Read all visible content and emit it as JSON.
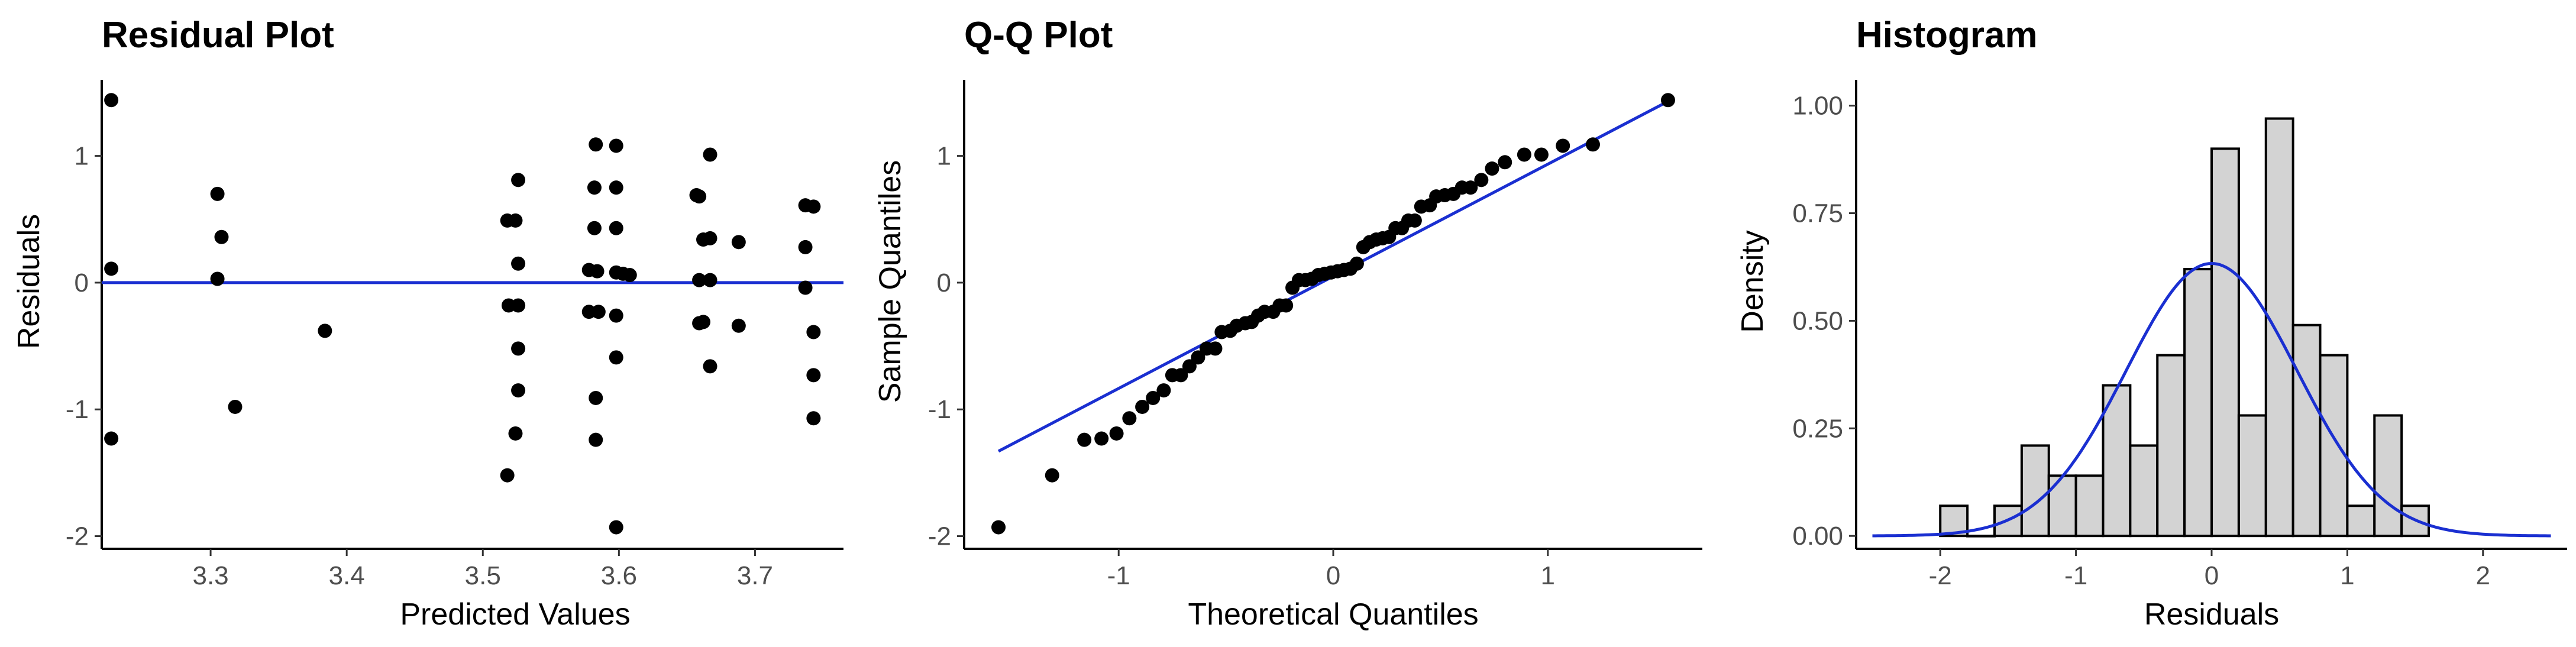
{
  "chart_data": [
    {
      "type": "scatter",
      "title": "Residual Plot",
      "xlabel": "Predicted Values",
      "ylabel": "Residuals",
      "xlim": [
        3.22,
        3.765
      ],
      "ylim": [
        -2.1,
        1.6
      ],
      "xticks": [
        3.3,
        3.4,
        3.5,
        3.6,
        3.7
      ],
      "yticks": [
        -2,
        -1,
        0,
        1
      ],
      "xtick_labels": [
        "3.3",
        "3.4",
        "3.5",
        "3.6",
        "3.7"
      ],
      "ytick_labels": [
        "-2",
        "-1",
        "0",
        "1"
      ],
      "grid": false,
      "reference_line": {
        "type": "horizontal",
        "y": 0,
        "color": "#1a2fd1"
      },
      "points_color": "#000000",
      "points": [
        [
          3.227,
          1.44
        ],
        [
          3.227,
          0.11
        ],
        [
          3.227,
          -1.23
        ],
        [
          3.305,
          0.7
        ],
        [
          3.308,
          0.36
        ],
        [
          3.305,
          0.03
        ],
        [
          3.318,
          -0.98
        ],
        [
          3.384,
          -0.38
        ],
        [
          3.518,
          0.49
        ],
        [
          3.524,
          0.49
        ],
        [
          3.526,
          0.81
        ],
        [
          3.519,
          -0.18
        ],
        [
          3.526,
          -0.18
        ],
        [
          3.526,
          0.15
        ],
        [
          3.526,
          -0.52
        ],
        [
          3.526,
          -0.85
        ],
        [
          3.524,
          -1.19
        ],
        [
          3.518,
          -1.52
        ],
        [
          3.583,
          1.09
        ],
        [
          3.582,
          0.75
        ],
        [
          3.582,
          0.43
        ],
        [
          3.578,
          0.1
        ],
        [
          3.584,
          0.09
        ],
        [
          3.578,
          -0.23
        ],
        [
          3.585,
          -0.23
        ],
        [
          3.583,
          -0.91
        ],
        [
          3.583,
          -1.24
        ],
        [
          3.598,
          1.08
        ],
        [
          3.598,
          0.75
        ],
        [
          3.598,
          0.43
        ],
        [
          3.598,
          0.08
        ],
        [
          3.603,
          0.07
        ],
        [
          3.608,
          0.06
        ],
        [
          3.598,
          -0.26
        ],
        [
          3.598,
          -0.59
        ],
        [
          3.598,
          -1.93
        ],
        [
          3.657,
          0.69
        ],
        [
          3.659,
          0.68
        ],
        [
          3.662,
          0.34
        ],
        [
          3.667,
          0.35
        ],
        [
          3.659,
          0.02
        ],
        [
          3.667,
          0.02
        ],
        [
          3.659,
          -0.32
        ],
        [
          3.662,
          -0.31
        ],
        [
          3.667,
          -0.66
        ],
        [
          3.667,
          1.01
        ],
        [
          3.688,
          0.32
        ],
        [
          3.688,
          -0.34
        ],
        [
          3.737,
          0.61
        ],
        [
          3.743,
          0.6
        ],
        [
          3.737,
          0.28
        ],
        [
          3.737,
          -0.04
        ],
        [
          3.743,
          -0.39
        ],
        [
          3.743,
          -0.73
        ],
        [
          3.743,
          -1.07
        ]
      ]
    },
    {
      "type": "scatter",
      "title": "Q-Q Plot",
      "xlabel": "Theoretical Quantiles",
      "ylabel": "Sample Quantiles",
      "xlim": [
        -1.72,
        1.72
      ],
      "ylim": [
        -2.1,
        1.6
      ],
      "xticks": [
        -1,
        0,
        1
      ],
      "yticks": [
        -2,
        -1,
        0,
        1
      ],
      "xtick_labels": [
        "-1",
        "0",
        "1"
      ],
      "ytick_labels": [
        "-2",
        "-1",
        "0",
        "1"
      ],
      "grid": false,
      "reference_line": {
        "type": "line",
        "x": [
          -1.56,
          1.56
        ],
        "y": [
          -1.33,
          1.43
        ],
        "color": "#1a2fd1"
      },
      "points_color": "#000000",
      "points": [
        [
          -1.56,
          -1.93
        ],
        [
          -1.31,
          -1.52
        ],
        [
          -1.16,
          -1.24
        ],
        [
          -1.08,
          -1.23
        ],
        [
          -1.01,
          -1.19
        ],
        [
          -0.95,
          -1.07
        ],
        [
          -0.89,
          -0.98
        ],
        [
          -0.84,
          -0.91
        ],
        [
          -0.79,
          -0.85
        ],
        [
          -0.75,
          -0.73
        ],
        [
          -0.71,
          -0.73
        ],
        [
          -0.67,
          -0.66
        ],
        [
          -0.63,
          -0.59
        ],
        [
          -0.59,
          -0.52
        ],
        [
          -0.55,
          -0.52
        ],
        [
          -0.52,
          -0.39
        ],
        [
          -0.48,
          -0.38
        ],
        [
          -0.45,
          -0.34
        ],
        [
          -0.41,
          -0.32
        ],
        [
          -0.38,
          -0.31
        ],
        [
          -0.35,
          -0.26
        ],
        [
          -0.32,
          -0.23
        ],
        [
          -0.28,
          -0.23
        ],
        [
          -0.25,
          -0.18
        ],
        [
          -0.22,
          -0.18
        ],
        [
          -0.19,
          -0.04
        ],
        [
          -0.16,
          0.02
        ],
        [
          -0.13,
          0.02
        ],
        [
          -0.1,
          0.03
        ],
        [
          -0.07,
          0.06
        ],
        [
          -0.04,
          0.07
        ],
        [
          -0.01,
          0.08
        ],
        [
          0.02,
          0.09
        ],
        [
          0.05,
          0.1
        ],
        [
          0.08,
          0.11
        ],
        [
          0.11,
          0.15
        ],
        [
          0.14,
          0.28
        ],
        [
          0.17,
          0.32
        ],
        [
          0.2,
          0.34
        ],
        [
          0.23,
          0.35
        ],
        [
          0.26,
          0.36
        ],
        [
          0.29,
          0.43
        ],
        [
          0.32,
          0.43
        ],
        [
          0.35,
          0.49
        ],
        [
          0.38,
          0.49
        ],
        [
          0.41,
          0.6
        ],
        [
          0.45,
          0.61
        ],
        [
          0.48,
          0.68
        ],
        [
          0.52,
          0.69
        ],
        [
          0.56,
          0.7
        ],
        [
          0.6,
          0.75
        ],
        [
          0.64,
          0.75
        ],
        [
          0.69,
          0.81
        ],
        [
          0.74,
          0.9
        ],
        [
          0.8,
          0.95
        ],
        [
          0.89,
          1.01
        ],
        [
          0.97,
          1.01
        ],
        [
          1.07,
          1.08
        ],
        [
          1.21,
          1.09
        ],
        [
          1.56,
          1.44
        ]
      ]
    },
    {
      "type": "bar",
      "title": "Histogram",
      "xlabel": "Residuals",
      "ylabel": "Density",
      "xlim": [
        -2.62,
        2.62
      ],
      "ylim": [
        -0.03,
        1.06
      ],
      "xticks": [
        -2,
        -1,
        0,
        1,
        2
      ],
      "yticks": [
        0.0,
        0.25,
        0.5,
        0.75,
        1.0
      ],
      "xtick_labels": [
        "-2",
        "-1",
        "0",
        "1",
        "2"
      ],
      "ytick_labels": [
        "0.00",
        "0.25",
        "0.50",
        "0.75",
        "1.00"
      ],
      "grid": false,
      "bin_width": 0.2,
      "bin_centers": [
        -1.9,
        -1.7,
        -1.5,
        -1.3,
        -1.1,
        -0.9,
        -0.7,
        -0.5,
        -0.3,
        -0.1,
        0.1,
        0.3,
        0.5,
        0.7,
        0.9,
        1.1,
        1.3,
        1.5
      ],
      "values": [
        0.07,
        0.0,
        0.07,
        0.21,
        0.14,
        0.14,
        0.35,
        0.21,
        0.42,
        0.62,
        0.9,
        0.28,
        0.97,
        0.49,
        0.42,
        0.07,
        0.28,
        0.07
      ],
      "bar_fill": "#d3d3d3",
      "bar_stroke": "#000000",
      "density_curve": {
        "type": "normal",
        "mean": 0.0,
        "sd": 0.63,
        "x_range": [
          -2.5,
          2.5
        ],
        "color": "#1a2fd1"
      }
    }
  ]
}
